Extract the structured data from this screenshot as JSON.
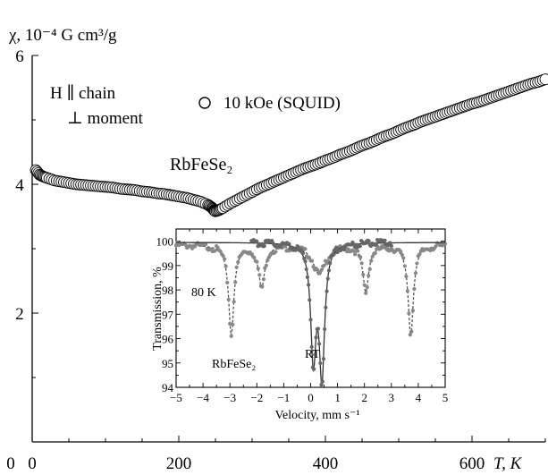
{
  "chart_data": [
    {
      "type": "scatter",
      "ylabel": "χ, 10⁻⁴ G cm³/g",
      "xlabel": "T, K",
      "xlim": [
        0,
        700
      ],
      "ylim": [
        0,
        6
      ],
      "x_ticks": [
        "0",
        "200",
        "400",
        "600"
      ],
      "y_ticks": [
        "2",
        "4",
        "6"
      ],
      "annotation_lines": [
        "H ∥ chain",
        "⊥ moment"
      ],
      "legend": "10 kOe (SQUID)",
      "compound": "RbFeSe₂",
      "series": [
        {
          "name": "10 kOe (SQUID)",
          "x": [
            5,
            10,
            15,
            20,
            30,
            40,
            50,
            60,
            70,
            80,
            90,
            100,
            110,
            120,
            130,
            140,
            150,
            160,
            170,
            180,
            190,
            200,
            210,
            220,
            230,
            240,
            245,
            248,
            250,
            255,
            260,
            270,
            280,
            290,
            300,
            310,
            320,
            330,
            340,
            350,
            360,
            370,
            380,
            390,
            400,
            410,
            420,
            430,
            440,
            450,
            460,
            470,
            480,
            490,
            500,
            510,
            520,
            530,
            540,
            550,
            560,
            570,
            580,
            590,
            600,
            610,
            620,
            630,
            640,
            650,
            660,
            670,
            680,
            690,
            700
          ],
          "y": [
            4.22,
            4.15,
            4.12,
            4.1,
            4.06,
            4.04,
            4.02,
            4.0,
            3.99,
            3.98,
            3.97,
            3.96,
            3.95,
            3.93,
            3.92,
            3.91,
            3.89,
            3.88,
            3.86,
            3.85,
            3.83,
            3.81,
            3.79,
            3.76,
            3.73,
            3.68,
            3.64,
            3.6,
            3.58,
            3.6,
            3.63,
            3.7,
            3.76,
            3.82,
            3.88,
            3.94,
            3.99,
            4.04,
            4.09,
            4.14,
            4.19,
            4.24,
            4.28,
            4.32,
            4.37,
            4.41,
            4.46,
            4.5,
            4.55,
            4.6,
            4.64,
            4.69,
            4.74,
            4.78,
            4.83,
            4.88,
            4.92,
            4.97,
            5.01,
            5.05,
            5.09,
            5.13,
            5.17,
            5.21,
            5.25,
            5.28,
            5.32,
            5.36,
            5.4,
            5.44,
            5.48,
            5.52,
            5.56,
            5.59,
            5.63
          ]
        }
      ]
    },
    {
      "type": "line",
      "ylabel": "Transmission, %",
      "xlabel": "Velocity, mm s⁻¹",
      "xlim": [
        -5,
        5
      ],
      "ylim": [
        94,
        100.5
      ],
      "x_ticks": [
        "−5",
        "−4",
        "−3",
        "−2",
        "−1",
        "0",
        "1",
        "2",
        "3",
        "4",
        "5"
      ],
      "y_ticks": [
        "94",
        "95",
        "96",
        "97",
        "98",
        "99",
        "100"
      ],
      "labels": [
        "80 K",
        "RT",
        "RbFeSe₂"
      ],
      "series": [
        {
          "name": "80 K",
          "baseline": 99.85,
          "lines": [
            {
              "center": -2.95,
              "depth": 3.7,
              "width": 0.12
            },
            {
              "center": -1.82,
              "depth": 1.7,
              "width": 0.14
            },
            {
              "center": 0.32,
              "depth": 1.2,
              "width": 0.28
            },
            {
              "center": 2.05,
              "depth": 1.9,
              "width": 0.13
            },
            {
              "center": 3.72,
              "depth": 3.7,
              "width": 0.12
            }
          ]
        },
        {
          "name": "RT",
          "baseline": 99.95,
          "lines": [
            {
              "center": 0.1,
              "depth": 4.6,
              "width": 0.12
            },
            {
              "center": 0.42,
              "depth": 5.3,
              "width": 0.12
            }
          ]
        }
      ]
    }
  ]
}
